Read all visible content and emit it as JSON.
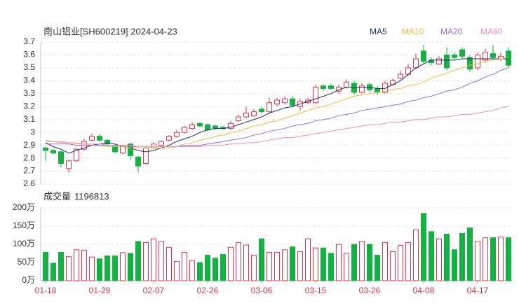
{
  "chart_data": {
    "type": "candlestick",
    "title": "南山铝业[SH600219] 2024-04-23",
    "categories": [
      "01-18",
      null,
      null,
      null,
      null,
      null,
      null,
      "01-29",
      null,
      null,
      null,
      null,
      null,
      null,
      "02-07",
      null,
      null,
      null,
      null,
      null,
      null,
      "02-26",
      null,
      null,
      null,
      null,
      null,
      null,
      "03-06",
      null,
      null,
      null,
      null,
      null,
      null,
      "03-15",
      null,
      null,
      null,
      null,
      null,
      null,
      "03-26",
      null,
      null,
      null,
      null,
      null,
      null,
      "04-08",
      null,
      null,
      null,
      null,
      null,
      null,
      "04-17",
      null,
      null,
      null,
      null
    ],
    "open": [
      2.88,
      2.86,
      2.85,
      2.72,
      2.78,
      2.87,
      2.94,
      2.97,
      2.94,
      2.9,
      2.84,
      2.91,
      2.81,
      2.76,
      2.88,
      2.9,
      2.94,
      2.97,
      3.0,
      3.03,
      3.07,
      3.06,
      3.05,
      3.04,
      3.03,
      3.09,
      3.12,
      3.13,
      3.18,
      3.16,
      3.22,
      3.23,
      3.26,
      3.2,
      3.23,
      3.23,
      3.36,
      3.36,
      3.32,
      3.35,
      3.38,
      3.31,
      3.37,
      3.34,
      3.31,
      3.37,
      3.42,
      3.45,
      3.5,
      3.63,
      3.56,
      3.53,
      3.6,
      3.6,
      3.64,
      3.58,
      3.5,
      3.56,
      3.61,
      3.57,
      3.63
    ],
    "close": [
      2.86,
      2.84,
      2.76,
      2.78,
      2.87,
      2.93,
      2.97,
      2.94,
      2.91,
      2.85,
      2.89,
      2.82,
      2.74,
      2.88,
      2.91,
      2.93,
      2.97,
      3.0,
      3.04,
      3.06,
      3.05,
      3.02,
      3.03,
      3.03,
      3.07,
      3.12,
      3.15,
      3.16,
      3.16,
      3.23,
      3.25,
      3.26,
      3.21,
      3.24,
      3.25,
      3.35,
      3.34,
      3.34,
      3.35,
      3.39,
      3.31,
      3.36,
      3.33,
      3.31,
      3.38,
      3.4,
      3.45,
      3.5,
      3.57,
      3.55,
      3.54,
      3.57,
      3.5,
      3.58,
      3.59,
      3.49,
      3.6,
      3.62,
      3.58,
      3.59,
      3.52
    ],
    "high": [
      2.89,
      2.87,
      2.86,
      2.79,
      2.88,
      2.95,
      2.99,
      2.99,
      2.95,
      2.91,
      2.9,
      2.92,
      2.82,
      2.89,
      2.92,
      2.94,
      2.98,
      3.02,
      3.05,
      3.08,
      3.08,
      3.07,
      3.06,
      3.05,
      3.09,
      3.14,
      3.2,
      3.18,
      3.2,
      3.27,
      3.27,
      3.28,
      3.28,
      3.26,
      3.27,
      3.37,
      3.37,
      3.38,
      3.37,
      3.41,
      3.4,
      3.38,
      3.39,
      3.36,
      3.4,
      3.42,
      3.48,
      3.53,
      3.61,
      3.68,
      3.58,
      3.59,
      3.66,
      3.62,
      3.66,
      3.6,
      3.62,
      3.65,
      3.68,
      3.62,
      3.66
    ],
    "low": [
      2.78,
      2.83,
      2.73,
      2.69,
      2.77,
      2.86,
      2.93,
      2.93,
      2.89,
      2.84,
      2.83,
      2.79,
      2.69,
      2.75,
      2.87,
      2.89,
      2.93,
      2.96,
      2.99,
      3.02,
      3.04,
      3.01,
      3.02,
      3.02,
      3.02,
      3.08,
      3.11,
      3.12,
      3.15,
      3.15,
      3.2,
      3.22,
      3.19,
      3.17,
      3.22,
      3.22,
      3.32,
      3.33,
      3.3,
      3.34,
      3.29,
      3.3,
      3.31,
      3.29,
      3.3,
      3.36,
      3.41,
      3.44,
      3.49,
      3.53,
      3.52,
      3.52,
      3.48,
      3.56,
      3.57,
      3.47,
      3.48,
      3.54,
      3.56,
      3.55,
      3.5
    ],
    "up_color": "#e8324a",
    "down_color": "#14b143",
    "ylim": [
      2.6,
      3.7
    ],
    "yticks": [
      2.6,
      2.7,
      2.8,
      2.9,
      3,
      3.1,
      3.2,
      3.3,
      3.4,
      3.5,
      3.6,
      3.7
    ],
    "grid": true,
    "series": [
      {
        "name": "MA5",
        "color": "#1f2d6e",
        "values": [
          2.92,
          2.89,
          2.87,
          2.84,
          2.86,
          2.88,
          2.9,
          2.91,
          2.92,
          2.91,
          2.89,
          2.88,
          2.86,
          2.85,
          2.86,
          2.88,
          2.9,
          2.93,
          2.95,
          2.97,
          3.0,
          3.02,
          3.03,
          3.03,
          3.04,
          3.06,
          3.08,
          3.1,
          3.12,
          3.15,
          3.17,
          3.19,
          3.2,
          3.22,
          3.24,
          3.26,
          3.28,
          3.3,
          3.33,
          3.35,
          3.35,
          3.35,
          3.35,
          3.34,
          3.34,
          3.37,
          3.4,
          3.45,
          3.5,
          3.53,
          3.56,
          3.56,
          3.56,
          3.56,
          3.57,
          3.57,
          3.57,
          3.57,
          3.57,
          3.57,
          3.57
        ]
      },
      {
        "name": "MA10",
        "color": "#f5b93a",
        "values": [
          2.93,
          2.93,
          2.92,
          2.92,
          2.91,
          2.91,
          2.9,
          2.9,
          2.89,
          2.89,
          2.89,
          2.88,
          2.88,
          2.88,
          2.88,
          2.88,
          2.88,
          2.89,
          2.91,
          2.92,
          2.94,
          2.95,
          2.97,
          2.98,
          3.0,
          3.01,
          3.03,
          3.05,
          3.06,
          3.08,
          3.09,
          3.11,
          3.13,
          3.15,
          3.17,
          3.19,
          3.2,
          3.22,
          3.24,
          3.26,
          3.28,
          3.29,
          3.3,
          3.31,
          3.32,
          3.33,
          3.34,
          3.36,
          3.37,
          3.39,
          3.42,
          3.44,
          3.46,
          3.48,
          3.5,
          3.52,
          3.53,
          3.55,
          3.56,
          3.57,
          3.58
        ]
      },
      {
        "name": "MA20",
        "color": "#9a6fdc",
        "values": [
          2.91,
          2.91,
          2.91,
          2.91,
          2.9,
          2.9,
          2.9,
          2.9,
          2.9,
          2.9,
          2.9,
          2.89,
          2.89,
          2.89,
          2.89,
          2.89,
          2.89,
          2.89,
          2.9,
          2.9,
          2.9,
          2.91,
          2.92,
          2.93,
          2.94,
          2.95,
          2.96,
          2.98,
          2.99,
          3.01,
          3.02,
          3.03,
          3.05,
          3.06,
          3.07,
          3.09,
          3.1,
          3.11,
          3.13,
          3.14,
          3.15,
          3.17,
          3.18,
          3.19,
          3.2,
          3.21,
          3.22,
          3.24,
          3.25,
          3.27,
          3.28,
          3.3,
          3.32,
          3.33,
          3.35,
          3.38,
          3.4,
          3.43,
          3.45,
          3.48,
          3.5
        ]
      },
      {
        "name": "MA60",
        "color": "#f08cc8",
        "values": [
          2.94,
          2.93,
          2.93,
          2.92,
          2.92,
          2.91,
          2.91,
          2.91,
          2.9,
          2.9,
          2.9,
          2.9,
          2.89,
          2.89,
          2.89,
          2.89,
          2.89,
          2.89,
          2.89,
          2.89,
          2.89,
          2.9,
          2.9,
          2.9,
          2.91,
          2.91,
          2.92,
          2.92,
          2.93,
          2.94,
          2.95,
          2.96,
          2.96,
          2.97,
          2.98,
          2.99,
          3.0,
          3.01,
          3.02,
          3.03,
          3.04,
          3.05,
          3.06,
          3.06,
          3.07,
          3.08,
          3.08,
          3.09,
          3.1,
          3.1,
          3.11,
          3.12,
          3.12,
          3.13,
          3.14,
          3.14,
          3.15,
          3.16,
          3.17,
          3.19,
          3.2
        ]
      }
    ],
    "volume": {
      "label": "成交量",
      "value": 1196813,
      "values": [
        78,
        48,
        78,
        66,
        85,
        84,
        65,
        60,
        68,
        68,
        77,
        75,
        108,
        105,
        115,
        108,
        92,
        53,
        78,
        55,
        50,
        70,
        62,
        72,
        92,
        105,
        98,
        70,
        115,
        78,
        78,
        85,
        93,
        80,
        115,
        90,
        90,
        75,
        100,
        75,
        100,
        108,
        100,
        70,
        105,
        80,
        97,
        105,
        140,
        185,
        135,
        115,
        128,
        85,
        130,
        145,
        108,
        118,
        118,
        120,
        118
      ],
      "ylim": [
        0,
        200
      ],
      "yticks": [
        {
          "value": 0,
          "label": "0万"
        },
        {
          "value": 50,
          "label": "50万"
        },
        {
          "value": 100,
          "label": "100万"
        },
        {
          "value": 150,
          "label": "150万"
        },
        {
          "value": 200,
          "label": "200万"
        }
      ]
    }
  }
}
